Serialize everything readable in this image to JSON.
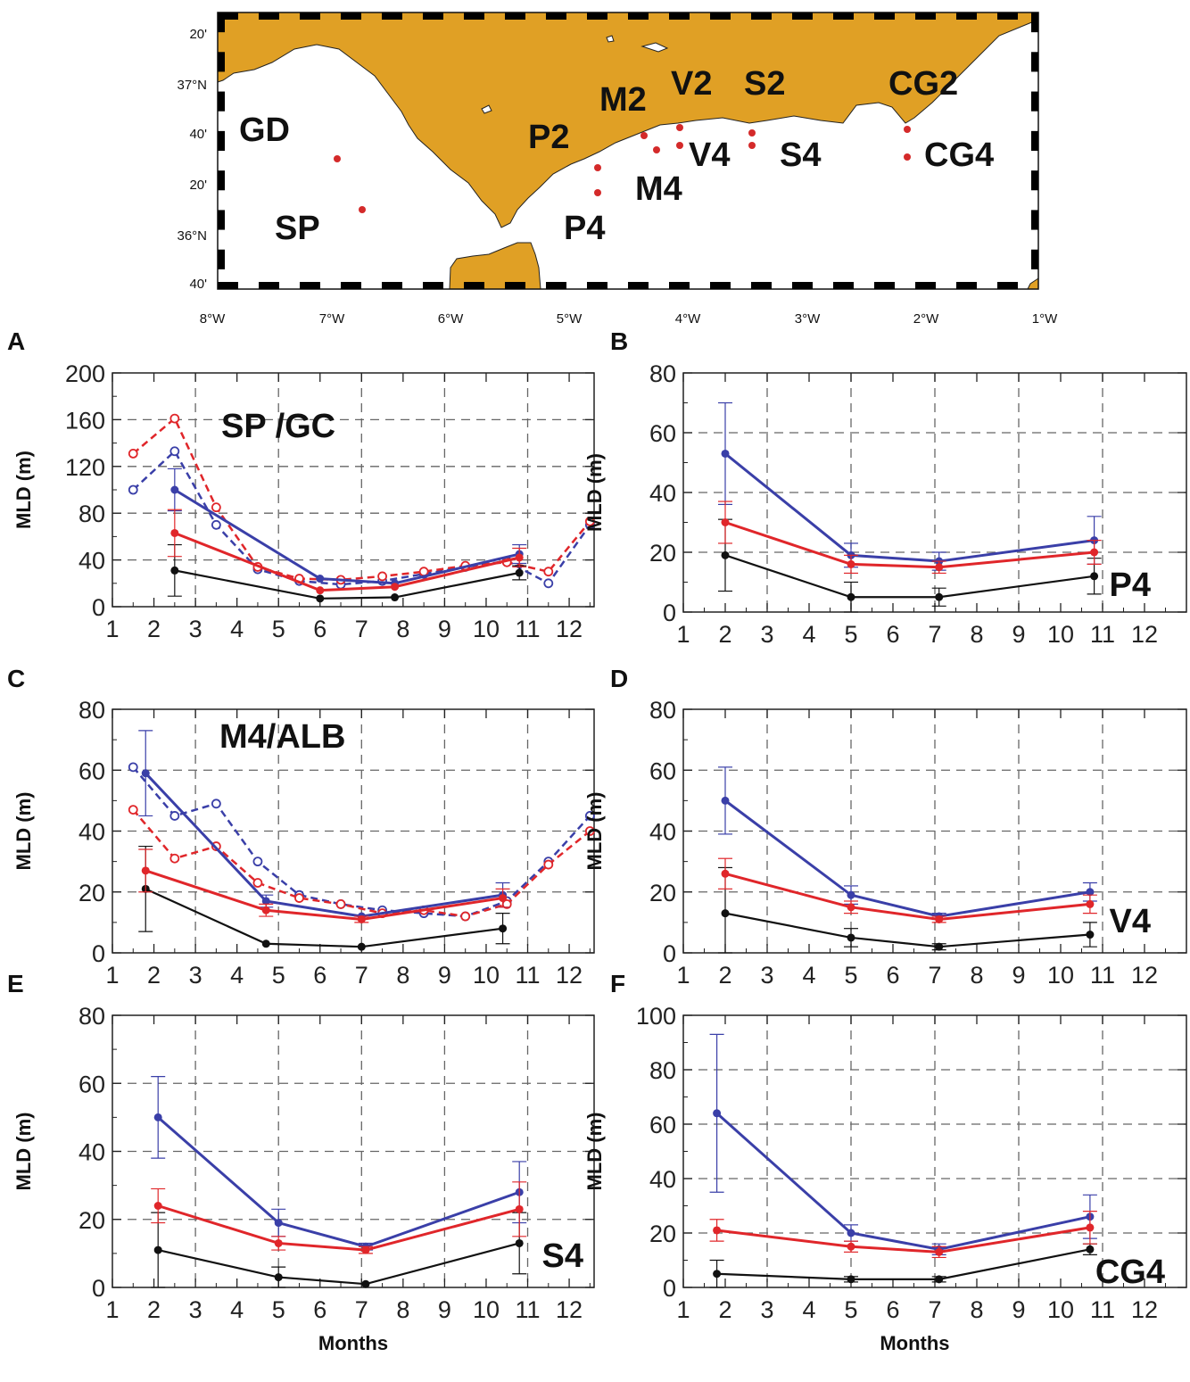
{
  "colors": {
    "land": "#e0a025",
    "black": "#111111",
    "blue": "#3a3fa8",
    "red": "#e0262a",
    "grid": "#666666",
    "station_dot": "#d42a2a"
  },
  "map": {
    "lon_labels": [
      "8°W",
      "7°W",
      "6°W",
      "5°W",
      "4°W",
      "3°W",
      "2°W",
      "1°W"
    ],
    "lat_labels": [
      "20'",
      "37°N",
      "40'",
      "20'",
      "36°N",
      "40'"
    ],
    "stations": [
      {
        "name": "GD"
      },
      {
        "name": "SP"
      },
      {
        "name": "P2"
      },
      {
        "name": "P4"
      },
      {
        "name": "M2"
      },
      {
        "name": "M4"
      },
      {
        "name": "V2"
      },
      {
        "name": "V4"
      },
      {
        "name": "S2"
      },
      {
        "name": "S4"
      },
      {
        "name": "CG2"
      },
      {
        "name": "CG4"
      }
    ]
  },
  "chart_data": [
    {
      "panel": "A",
      "type": "line",
      "title": "SP /GC",
      "xlabel": "",
      "ylabel": "MLD (m)",
      "xlim": [
        1,
        12.6
      ],
      "ylim": [
        0,
        200
      ],
      "x_ticks": [
        "1",
        "2",
        "3",
        "4",
        "5",
        "6",
        "7",
        "8",
        "9",
        "10",
        "11",
        "12"
      ],
      "y_ticks": [
        "0",
        "40",
        "80",
        "120",
        "160",
        "200"
      ],
      "series": [
        {
          "name": "black",
          "style": "solid",
          "x": [
            2.5,
            6,
            7.8,
            10.8
          ],
          "y": [
            31,
            7,
            8,
            29
          ],
          "err": [
            22,
            0,
            0,
            6
          ]
        },
        {
          "name": "blue",
          "style": "solid",
          "x": [
            2.5,
            6,
            7.8,
            10.8
          ],
          "y": [
            100,
            24,
            20,
            45
          ],
          "err": [
            18,
            0,
            0,
            8
          ]
        },
        {
          "name": "red",
          "style": "solid",
          "x": [
            2.5,
            6,
            7.8,
            10.8
          ],
          "y": [
            63,
            14,
            17,
            42
          ],
          "err": [
            20,
            0,
            0,
            8
          ]
        },
        {
          "name": "blue clim",
          "style": "dashed",
          "x": [
            1.5,
            2.5,
            3.5,
            4.5,
            5.5,
            6.5,
            7.5,
            8.5,
            9.5,
            10.5,
            11.5,
            12.5
          ],
          "y": [
            100,
            133,
            70,
            32,
            22,
            19,
            22,
            28,
            34,
            39,
            20,
            70
          ]
        },
        {
          "name": "red clim",
          "style": "dashed",
          "x": [
            1.5,
            2.5,
            3.5,
            4.5,
            5.5,
            6.5,
            7.5,
            8.5,
            9.5,
            10.5,
            11.5,
            12.5
          ],
          "y": [
            131,
            161,
            85,
            34,
            24,
            23,
            26,
            30,
            35,
            38,
            30,
            73
          ]
        }
      ]
    },
    {
      "panel": "B",
      "type": "line",
      "title": "P4",
      "xlabel": "",
      "ylabel": "MLD (m)",
      "xlim": [
        1,
        13
      ],
      "ylim": [
        0,
        80
      ],
      "x_ticks": [
        "1",
        "2",
        "3",
        "4",
        "5",
        "6",
        "7",
        "8",
        "9",
        "10",
        "11",
        "12"
      ],
      "y_ticks": [
        "0",
        "20",
        "40",
        "60",
        "80"
      ],
      "series": [
        {
          "name": "black",
          "style": "solid",
          "x": [
            2,
            5,
            7.1,
            10.8
          ],
          "y": [
            19,
            5,
            5,
            12
          ],
          "err": [
            12,
            5,
            3,
            6
          ]
        },
        {
          "name": "blue",
          "style": "solid",
          "x": [
            2,
            5,
            7.1,
            10.8
          ],
          "y": [
            53,
            19,
            17,
            24
          ],
          "err": [
            17,
            4,
            3,
            8
          ]
        },
        {
          "name": "red",
          "style": "solid",
          "x": [
            2,
            5,
            7.1,
            10.8
          ],
          "y": [
            30,
            16,
            15,
            20
          ],
          "err": [
            7,
            3,
            2,
            4
          ]
        }
      ]
    },
    {
      "panel": "C",
      "type": "line",
      "title": "M4/ALB",
      "xlabel": "",
      "ylabel": "MLD (m)",
      "xlim": [
        1,
        12.6
      ],
      "ylim": [
        0,
        80
      ],
      "x_ticks": [
        "1",
        "2",
        "3",
        "4",
        "5",
        "6",
        "7",
        "8",
        "9",
        "10",
        "11",
        "12"
      ],
      "y_ticks": [
        "0",
        "20",
        "40",
        "60",
        "80"
      ],
      "series": [
        {
          "name": "black",
          "style": "solid",
          "x": [
            1.8,
            4.7,
            7,
            10.4
          ],
          "y": [
            21,
            3,
            2,
            8
          ],
          "err": [
            14,
            0,
            0,
            5
          ]
        },
        {
          "name": "blue",
          "style": "solid",
          "x": [
            1.8,
            4.7,
            7,
            10.4
          ],
          "y": [
            59,
            17,
            12,
            19
          ],
          "err": [
            14,
            2,
            0,
            4
          ]
        },
        {
          "name": "red",
          "style": "solid",
          "x": [
            1.8,
            4.7,
            7,
            10.4
          ],
          "y": [
            27,
            14,
            11,
            18
          ],
          "err": [
            7,
            2,
            1,
            3
          ]
        },
        {
          "name": "blue clim",
          "style": "dashed",
          "x": [
            1.5,
            2.5,
            3.5,
            4.5,
            5.5,
            6.5,
            7.5,
            8.5,
            9.5,
            10.5,
            11.5,
            12.5
          ],
          "y": [
            61,
            45,
            49,
            30,
            19,
            16,
            14,
            13,
            12,
            17,
            30,
            45
          ]
        },
        {
          "name": "red clim",
          "style": "dashed",
          "x": [
            1.5,
            2.5,
            3.5,
            4.5,
            5.5,
            6.5,
            7.5,
            8.5,
            9.5,
            10.5,
            11.5,
            12.5
          ],
          "y": [
            47,
            31,
            35,
            23,
            18,
            16,
            13,
            14,
            12,
            16,
            29,
            40
          ]
        }
      ]
    },
    {
      "panel": "D",
      "type": "line",
      "title": "V4",
      "xlabel": "",
      "ylabel": "MLD (m)",
      "xlim": [
        1,
        13
      ],
      "ylim": [
        0,
        80
      ],
      "x_ticks": [
        "1",
        "2",
        "3",
        "4",
        "5",
        "6",
        "7",
        "8",
        "9",
        "10",
        "11",
        "12"
      ],
      "y_ticks": [
        "0",
        "20",
        "40",
        "60",
        "80"
      ],
      "series": [
        {
          "name": "black",
          "style": "solid",
          "x": [
            2,
            5,
            7.1,
            10.7
          ],
          "y": [
            13,
            5,
            2,
            6
          ],
          "err": [
            15,
            3,
            1,
            4
          ]
        },
        {
          "name": "blue",
          "style": "solid",
          "x": [
            2,
            5,
            7.1,
            10.7
          ],
          "y": [
            50,
            19,
            12,
            20
          ],
          "err": [
            11,
            3,
            1,
            3
          ]
        },
        {
          "name": "red",
          "style": "solid",
          "x": [
            2,
            5,
            7.1,
            10.7
          ],
          "y": [
            26,
            15,
            11,
            16
          ],
          "err": [
            5,
            2,
            1,
            3
          ]
        }
      ]
    },
    {
      "panel": "E",
      "type": "line",
      "title": "S4",
      "xlabel": "Months",
      "ylabel": "MLD (m)",
      "xlim": [
        1,
        12.6
      ],
      "ylim": [
        0,
        80
      ],
      "x_ticks": [
        "1",
        "2",
        "3",
        "4",
        "5",
        "6",
        "7",
        "8",
        "9",
        "10",
        "11",
        "12"
      ],
      "y_ticks": [
        "0",
        "20",
        "40",
        "60",
        "80"
      ],
      "series": [
        {
          "name": "black",
          "style": "solid",
          "x": [
            2.1,
            5,
            7.1,
            10.8
          ],
          "y": [
            11,
            3,
            1,
            13
          ],
          "err": [
            11,
            3,
            0,
            9
          ]
        },
        {
          "name": "blue",
          "style": "solid",
          "x": [
            2.1,
            5,
            7.1,
            10.8
          ],
          "y": [
            50,
            19,
            12,
            28
          ],
          "err": [
            12,
            4,
            1,
            9
          ]
        },
        {
          "name": "red",
          "style": "solid",
          "x": [
            2.1,
            5,
            7.1,
            10.8
          ],
          "y": [
            24,
            13,
            11,
            23
          ],
          "err": [
            5,
            2,
            1,
            8
          ]
        }
      ]
    },
    {
      "panel": "F",
      "type": "line",
      "title": "CG4",
      "xlabel": "Months",
      "ylabel": "MLD (m)",
      "xlim": [
        1,
        13
      ],
      "ylim": [
        0,
        100
      ],
      "x_ticks": [
        "1",
        "2",
        "3",
        "4",
        "5",
        "6",
        "7",
        "8",
        "9",
        "10",
        "11",
        "12"
      ],
      "y_ticks": [
        "0",
        "20",
        "40",
        "60",
        "80",
        "100"
      ],
      "series": [
        {
          "name": "black",
          "style": "solid",
          "x": [
            1.8,
            5,
            7.1,
            10.7
          ],
          "y": [
            5,
            3,
            3,
            14
          ],
          "err": [
            5,
            1,
            1,
            2
          ]
        },
        {
          "name": "blue",
          "style": "solid",
          "x": [
            1.8,
            5,
            7.1,
            10.7
          ],
          "y": [
            64,
            20,
            14,
            26
          ],
          "err": [
            29,
            3,
            2,
            8
          ]
        },
        {
          "name": "red",
          "style": "solid",
          "x": [
            1.8,
            5,
            7.1,
            10.7
          ],
          "y": [
            21,
            15,
            13,
            22
          ],
          "err": [
            4,
            2,
            2,
            6
          ]
        }
      ]
    }
  ]
}
